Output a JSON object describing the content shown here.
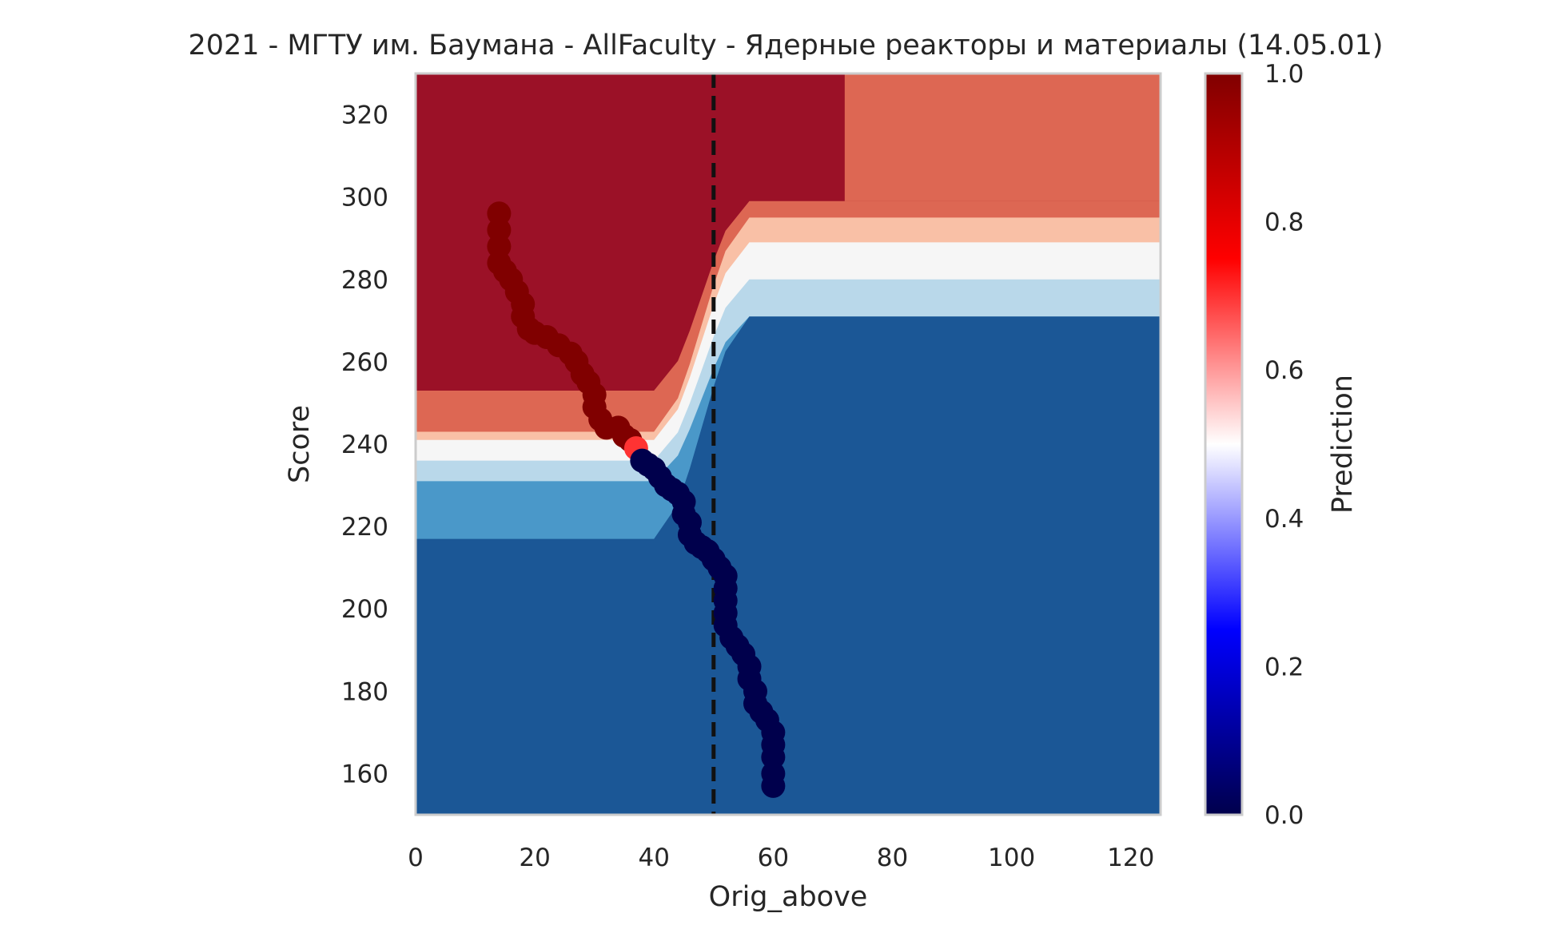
{
  "chart_data": {
    "type": "contour",
    "title": "2021 - МГТУ им. Баумана - AllFaculty - Ядерные реакторы и материалы (14.05.01)",
    "xlabel": "Orig_above",
    "ylabel": "Score",
    "xlim": [
      0,
      125
    ],
    "ylim": [
      150,
      330
    ],
    "xticks": [
      "0",
      "20",
      "40",
      "60",
      "80",
      "100",
      "120"
    ],
    "yticks": [
      "160",
      "180",
      "200",
      "220",
      "240",
      "260",
      "280",
      "300",
      "320"
    ],
    "grid": false,
    "reference_line": {
      "x": 50,
      "style": "dashed",
      "color": "#111111"
    },
    "colorbar": {
      "label": "Prediction",
      "colormap": "seismic",
      "range": [
        0,
        1
      ],
      "ticks": [
        "0.0",
        "0.2",
        "0.4",
        "0.6",
        "0.8",
        "1.0"
      ]
    },
    "contour_level_colors": {
      "very_low": "#1b5796",
      "low": "#4a98c9",
      "mid_low": "#b9d8ea",
      "mid": "#f6f6f6",
      "mid_high": "#f9c0a6",
      "high": "#dd6753",
      "very_high": "#9b1127"
    },
    "contour_levels": {
      "top_band_x_split": 72,
      "top_right_level": "high",
      "right_side_boundaries": [
        {
          "score": 299,
          "above": "high",
          "below": "mid_high"
        },
        {
          "score": 295,
          "above": "mid_high",
          "below": "mid"
        },
        {
          "score": 289,
          "above": "mid",
          "below": "mid_low"
        },
        {
          "score": 280,
          "above": "mid_low",
          "below": "low"
        },
        {
          "score": 271,
          "above": "low",
          "below": "very_low"
        }
      ],
      "left_side_boundaries": [
        {
          "score": 253,
          "above": "very_high",
          "below": "high"
        },
        {
          "score": 243,
          "above": "high",
          "below": "mid_high"
        },
        {
          "score": 241,
          "above": "mid_high",
          "below": "mid"
        },
        {
          "score": 236,
          "above": "mid",
          "below": "mid_low"
        },
        {
          "score": 231,
          "above": "mid_low",
          "below": "low"
        },
        {
          "score": 217,
          "above": "low",
          "below": "very_low"
        }
      ]
    },
    "series": [
      {
        "type": "scatter",
        "colored_by": "prediction",
        "points": [
          {
            "x": 14,
            "y": 296,
            "p": 1
          },
          {
            "x": 14,
            "y": 292,
            "p": 1
          },
          {
            "x": 14,
            "y": 288,
            "p": 1
          },
          {
            "x": 14,
            "y": 284,
            "p": 1
          },
          {
            "x": 15,
            "y": 282,
            "p": 1
          },
          {
            "x": 16,
            "y": 280,
            "p": 1
          },
          {
            "x": 17,
            "y": 277,
            "p": 1
          },
          {
            "x": 18,
            "y": 274,
            "p": 1
          },
          {
            "x": 18,
            "y": 271,
            "p": 1
          },
          {
            "x": 19,
            "y": 268,
            "p": 1
          },
          {
            "x": 20,
            "y": 267,
            "p": 1
          },
          {
            "x": 22,
            "y": 266,
            "p": 1
          },
          {
            "x": 24,
            "y": 264,
            "p": 1
          },
          {
            "x": 26,
            "y": 262,
            "p": 1
          },
          {
            "x": 27,
            "y": 260,
            "p": 1
          },
          {
            "x": 28,
            "y": 257,
            "p": 1
          },
          {
            "x": 29,
            "y": 255,
            "p": 1
          },
          {
            "x": 30,
            "y": 252,
            "p": 1
          },
          {
            "x": 30,
            "y": 249,
            "p": 1
          },
          {
            "x": 31,
            "y": 246,
            "p": 1
          },
          {
            "x": 32,
            "y": 244,
            "p": 1
          },
          {
            "x": 34,
            "y": 244,
            "p": 1
          },
          {
            "x": 35,
            "y": 242,
            "p": 1
          },
          {
            "x": 36,
            "y": 241,
            "p": 1
          },
          {
            "x": 37,
            "y": 239,
            "p": 0.7
          },
          {
            "x": 38,
            "y": 236,
            "p": 0
          },
          {
            "x": 39,
            "y": 235,
            "p": 0
          },
          {
            "x": 40,
            "y": 234,
            "p": 0
          },
          {
            "x": 41,
            "y": 232,
            "p": 0
          },
          {
            "x": 42,
            "y": 230,
            "p": 0
          },
          {
            "x": 43,
            "y": 229,
            "p": 0
          },
          {
            "x": 44,
            "y": 228,
            "p": 0
          },
          {
            "x": 45,
            "y": 226,
            "p": 0
          },
          {
            "x": 45,
            "y": 223,
            "p": 0
          },
          {
            "x": 46,
            "y": 221,
            "p": 0
          },
          {
            "x": 46,
            "y": 218,
            "p": 0
          },
          {
            "x": 47,
            "y": 216,
            "p": 0
          },
          {
            "x": 48,
            "y": 215,
            "p": 0
          },
          {
            "x": 49,
            "y": 214,
            "p": 0
          },
          {
            "x": 50,
            "y": 212,
            "p": 0
          },
          {
            "x": 51,
            "y": 210,
            "p": 0
          },
          {
            "x": 52,
            "y": 208,
            "p": 0
          },
          {
            "x": 52,
            "y": 205,
            "p": 0
          },
          {
            "x": 52,
            "y": 202,
            "p": 0
          },
          {
            "x": 52,
            "y": 199,
            "p": 0
          },
          {
            "x": 52,
            "y": 196,
            "p": 0
          },
          {
            "x": 53,
            "y": 193,
            "p": 0
          },
          {
            "x": 54,
            "y": 191,
            "p": 0
          },
          {
            "x": 55,
            "y": 189,
            "p": 0
          },
          {
            "x": 56,
            "y": 186,
            "p": 0
          },
          {
            "x": 56,
            "y": 183,
            "p": 0
          },
          {
            "x": 57,
            "y": 180,
            "p": 0
          },
          {
            "x": 57,
            "y": 177,
            "p": 0
          },
          {
            "x": 58,
            "y": 175,
            "p": 0
          },
          {
            "x": 59,
            "y": 173,
            "p": 0
          },
          {
            "x": 60,
            "y": 170,
            "p": 0
          },
          {
            "x": 60,
            "y": 167,
            "p": 0
          },
          {
            "x": 60,
            "y": 164,
            "p": 0
          },
          {
            "x": 60,
            "y": 160,
            "p": 0
          },
          {
            "x": 60,
            "y": 157,
            "p": 0
          }
        ]
      }
    ]
  }
}
